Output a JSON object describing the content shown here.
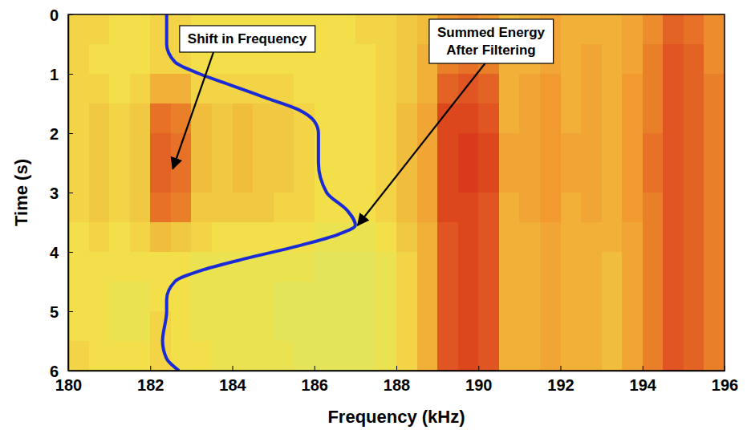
{
  "chart_data": {
    "type": "heatmap",
    "xlabel": "Frequency (kHz)",
    "ylabel": "Time (s)",
    "xlim": [
      180,
      196
    ],
    "ylim": [
      0,
      6
    ],
    "xticks": [
      180,
      182,
      184,
      186,
      188,
      190,
      192,
      194,
      196
    ],
    "yticks": [
      0,
      1,
      2,
      3,
      4,
      5,
      6
    ],
    "x_edges": [
      180,
      180.5,
      181,
      181.5,
      182,
      182.5,
      183,
      183.5,
      184,
      184.5,
      185,
      185.5,
      186,
      186.5,
      187,
      187.5,
      188,
      188.5,
      189,
      189.5,
      190,
      190.5,
      191,
      191.5,
      192,
      192.5,
      193,
      193.5,
      194,
      194.5,
      195,
      195.5,
      196
    ],
    "y_edges": [
      0,
      0.5,
      1,
      1.5,
      2,
      2.5,
      3,
      3.5,
      4,
      4.5,
      5,
      5.5,
      6
    ],
    "zlim": [
      0,
      1
    ],
    "cells": [
      [
        0.35,
        0.35,
        0.3,
        0.3,
        0.35,
        0.35,
        0.3,
        0.3,
        0.3,
        0.3,
        0.3,
        0.3,
        0.3,
        0.3,
        0.35,
        0.35,
        0.4,
        0.45,
        0.6,
        0.65,
        0.6,
        0.45,
        0.5,
        0.55,
        0.5,
        0.5,
        0.5,
        0.55,
        0.65,
        0.8,
        0.75,
        0.65
      ],
      [
        0.35,
        0.3,
        0.3,
        0.3,
        0.35,
        0.35,
        0.3,
        0.3,
        0.3,
        0.3,
        0.3,
        0.3,
        0.3,
        0.3,
        0.3,
        0.35,
        0.4,
        0.5,
        0.7,
        0.75,
        0.7,
        0.5,
        0.5,
        0.55,
        0.5,
        0.55,
        0.5,
        0.55,
        0.7,
        0.85,
        0.8,
        0.65
      ],
      [
        0.35,
        0.35,
        0.3,
        0.35,
        0.5,
        0.5,
        0.35,
        0.35,
        0.35,
        0.35,
        0.35,
        0.3,
        0.3,
        0.3,
        0.3,
        0.35,
        0.4,
        0.5,
        0.8,
        0.85,
        0.8,
        0.5,
        0.55,
        0.6,
        0.5,
        0.55,
        0.5,
        0.6,
        0.7,
        0.85,
        0.8,
        0.7
      ],
      [
        0.35,
        0.4,
        0.35,
        0.4,
        0.75,
        0.7,
        0.45,
        0.4,
        0.45,
        0.4,
        0.4,
        0.35,
        0.3,
        0.3,
        0.3,
        0.35,
        0.45,
        0.55,
        0.9,
        0.9,
        0.85,
        0.5,
        0.55,
        0.6,
        0.5,
        0.55,
        0.5,
        0.6,
        0.7,
        0.85,
        0.8,
        0.7
      ],
      [
        0.35,
        0.4,
        0.35,
        0.4,
        0.8,
        0.75,
        0.45,
        0.4,
        0.45,
        0.4,
        0.4,
        0.35,
        0.3,
        0.3,
        0.3,
        0.35,
        0.45,
        0.55,
        0.9,
        0.95,
        0.9,
        0.55,
        0.55,
        0.6,
        0.55,
        0.55,
        0.5,
        0.6,
        0.75,
        0.85,
        0.8,
        0.7
      ],
      [
        0.35,
        0.4,
        0.35,
        0.4,
        0.8,
        0.75,
        0.45,
        0.4,
        0.45,
        0.4,
        0.4,
        0.35,
        0.3,
        0.3,
        0.3,
        0.35,
        0.45,
        0.55,
        0.9,
        0.95,
        0.9,
        0.55,
        0.55,
        0.6,
        0.55,
        0.55,
        0.5,
        0.6,
        0.75,
        0.85,
        0.8,
        0.7
      ],
      [
        0.35,
        0.4,
        0.35,
        0.4,
        0.75,
        0.7,
        0.4,
        0.4,
        0.4,
        0.4,
        0.35,
        0.35,
        0.3,
        0.3,
        0.3,
        0.35,
        0.45,
        0.55,
        0.9,
        0.9,
        0.85,
        0.5,
        0.55,
        0.6,
        0.5,
        0.55,
        0.5,
        0.6,
        0.7,
        0.85,
        0.8,
        0.7
      ],
      [
        0.3,
        0.35,
        0.3,
        0.35,
        0.45,
        0.4,
        0.35,
        0.3,
        0.3,
        0.3,
        0.3,
        0.3,
        0.25,
        0.25,
        0.25,
        0.3,
        0.4,
        0.5,
        0.85,
        0.9,
        0.85,
        0.5,
        0.5,
        0.55,
        0.5,
        0.5,
        0.5,
        0.55,
        0.7,
        0.85,
        0.8,
        0.7
      ],
      [
        0.3,
        0.3,
        0.3,
        0.3,
        0.3,
        0.3,
        0.25,
        0.25,
        0.25,
        0.25,
        0.25,
        0.25,
        0.2,
        0.2,
        0.2,
        0.25,
        0.35,
        0.5,
        0.85,
        0.9,
        0.85,
        0.5,
        0.5,
        0.55,
        0.5,
        0.5,
        0.45,
        0.55,
        0.7,
        0.85,
        0.8,
        0.7
      ],
      [
        0.3,
        0.3,
        0.25,
        0.25,
        0.3,
        0.3,
        0.25,
        0.25,
        0.25,
        0.25,
        0.2,
        0.2,
        0.2,
        0.2,
        0.2,
        0.25,
        0.35,
        0.5,
        0.85,
        0.9,
        0.85,
        0.5,
        0.5,
        0.55,
        0.5,
        0.5,
        0.45,
        0.55,
        0.7,
        0.85,
        0.8,
        0.7
      ],
      [
        0.3,
        0.3,
        0.25,
        0.25,
        0.35,
        0.3,
        0.25,
        0.25,
        0.25,
        0.25,
        0.2,
        0.2,
        0.2,
        0.2,
        0.2,
        0.25,
        0.35,
        0.5,
        0.85,
        0.9,
        0.85,
        0.5,
        0.5,
        0.55,
        0.5,
        0.5,
        0.45,
        0.55,
        0.7,
        0.85,
        0.8,
        0.7
      ],
      [
        0.35,
        0.3,
        0.3,
        0.3,
        0.35,
        0.3,
        0.3,
        0.25,
        0.25,
        0.25,
        0.25,
        0.2,
        0.2,
        0.2,
        0.2,
        0.25,
        0.35,
        0.5,
        0.85,
        0.9,
        0.85,
        0.5,
        0.5,
        0.55,
        0.5,
        0.5,
        0.45,
        0.55,
        0.7,
        0.85,
        0.8,
        0.7
      ]
    ],
    "line": {
      "color": "#1a2bd6",
      "x": [
        182.4,
        182.4,
        182.6,
        183.2,
        184.0,
        184.8,
        185.6,
        186.0,
        186.1,
        186.1,
        186.3,
        186.8,
        187.0,
        186.6,
        185.6,
        184.4,
        183.3,
        182.6,
        182.4,
        182.4,
        182.3,
        182.4,
        182.7
      ],
      "y": [
        0,
        0.5,
        0.8,
        1.0,
        1.2,
        1.4,
        1.6,
        1.8,
        2.0,
        2.5,
        3.0,
        3.3,
        3.55,
        3.7,
        3.9,
        4.1,
        4.3,
        4.5,
        4.8,
        5.0,
        5.5,
        5.8,
        6.0
      ]
    },
    "annotations": [
      {
        "text": "Shift in Frequency"
      },
      {
        "text": "Summed Energy After Filtering"
      }
    ]
  }
}
